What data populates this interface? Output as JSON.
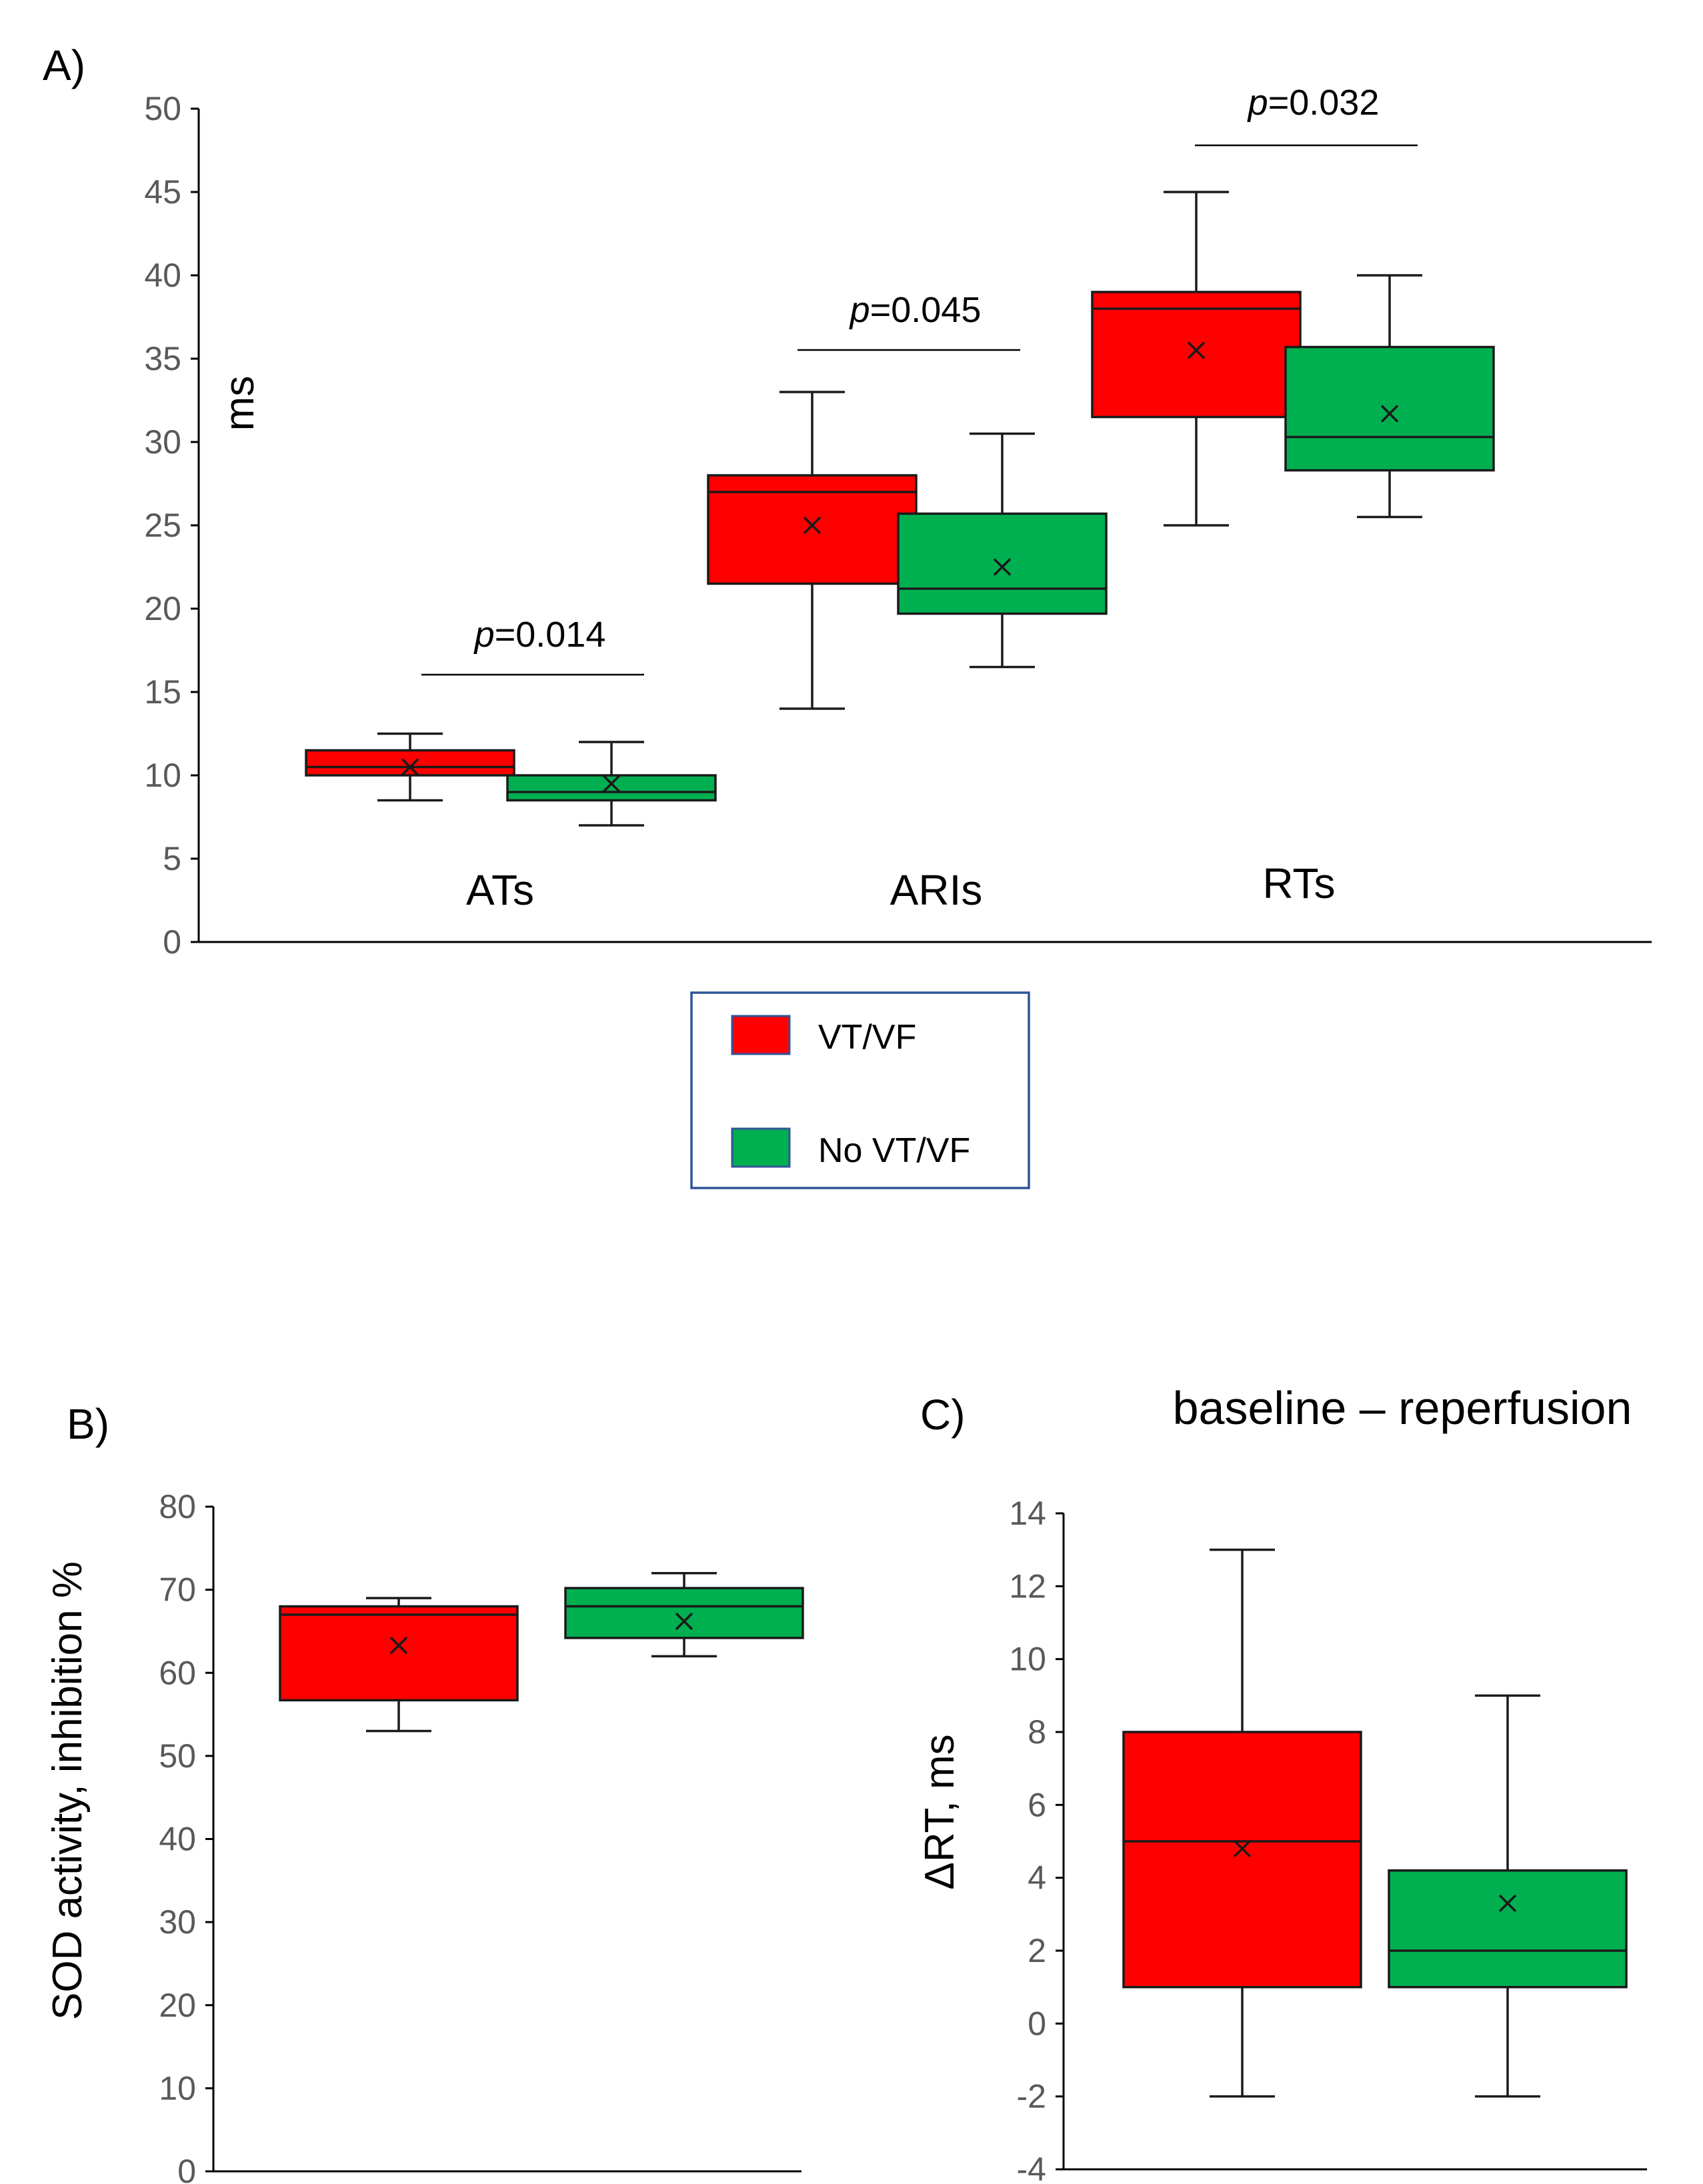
{
  "colors": {
    "vt_vf": "#ff0000",
    "no_vt_vf": "#00b050",
    "legend_border": "#2f5597"
  },
  "legend": {
    "items": [
      "VT/VF",
      "No VT/VF"
    ]
  },
  "chart_data": [
    {
      "panel": "A)",
      "type": "box",
      "ylabel": "ms",
      "yticks": [
        0,
        5,
        10,
        15,
        20,
        25,
        30,
        35,
        40,
        45,
        50
      ],
      "ylim": [
        0,
        50
      ],
      "categories": [
        "ATs",
        "ARIs",
        "RTs"
      ],
      "p_values": [
        {
          "prefix": "p",
          "value": "=0.014"
        },
        {
          "prefix": "p",
          "value": "=0.045"
        },
        {
          "prefix": "p",
          "value": "=0.032"
        }
      ],
      "series": [
        {
          "name": "VT/VF",
          "boxes": [
            {
              "min": 8.5,
              "q1": 10.0,
              "median": 10.5,
              "q3": 11.5,
              "max": 12.5,
              "mean": 10.5
            },
            {
              "min": 14.0,
              "q1": 21.5,
              "median": 27.0,
              "q3": 28.0,
              "max": 33.0,
              "mean": 25.0
            },
            {
              "min": 25.0,
              "q1": 31.5,
              "median": 38.0,
              "q3": 39.0,
              "max": 45.0,
              "mean": 35.5
            }
          ]
        },
        {
          "name": "No VT/VF",
          "boxes": [
            {
              "min": 7.0,
              "q1": 8.5,
              "median": 9.0,
              "q3": 10.0,
              "max": 12.0,
              "mean": 9.5
            },
            {
              "min": 16.5,
              "q1": 19.7,
              "median": 21.2,
              "q3": 25.7,
              "max": 30.5,
              "mean": 22.5
            },
            {
              "min": 25.5,
              "q1": 28.3,
              "median": 30.3,
              "q3": 35.7,
              "max": 40.0,
              "mean": 31.7
            }
          ]
        }
      ]
    },
    {
      "panel": "B)",
      "type": "box",
      "ylabel": "SOD activity, inhibition %",
      "yticks": [
        0,
        10,
        20,
        30,
        40,
        50,
        60,
        70,
        80
      ],
      "ylim": [
        0,
        80
      ],
      "series": [
        {
          "name": "VT/VF",
          "box": {
            "min": 53,
            "q1": 56.7,
            "median": 67,
            "q3": 68,
            "max": 69,
            "mean": 63.3
          }
        },
        {
          "name": "No VT/VF",
          "box": {
            "min": 62,
            "q1": 64.2,
            "median": 68,
            "q3": 70.2,
            "max": 72,
            "mean": 66.2
          }
        }
      ]
    },
    {
      "panel": "C)",
      "type": "box",
      "title": "baseline – reperfusion",
      "ylabel": "ΔRT, ms",
      "yticks": [
        -4,
        -2,
        0,
        2,
        4,
        6,
        8,
        10,
        12,
        14
      ],
      "ylim": [
        -4,
        14
      ],
      "series": [
        {
          "name": "VT/VF",
          "box": {
            "min": -2,
            "q1": 1,
            "median": 5,
            "q3": 8,
            "max": 13,
            "mean": 4.8
          }
        },
        {
          "name": "No VT/VF",
          "box": {
            "min": -2,
            "q1": 1,
            "median": 2,
            "q3": 4.2,
            "max": 9,
            "mean": 3.3
          }
        }
      ]
    }
  ]
}
